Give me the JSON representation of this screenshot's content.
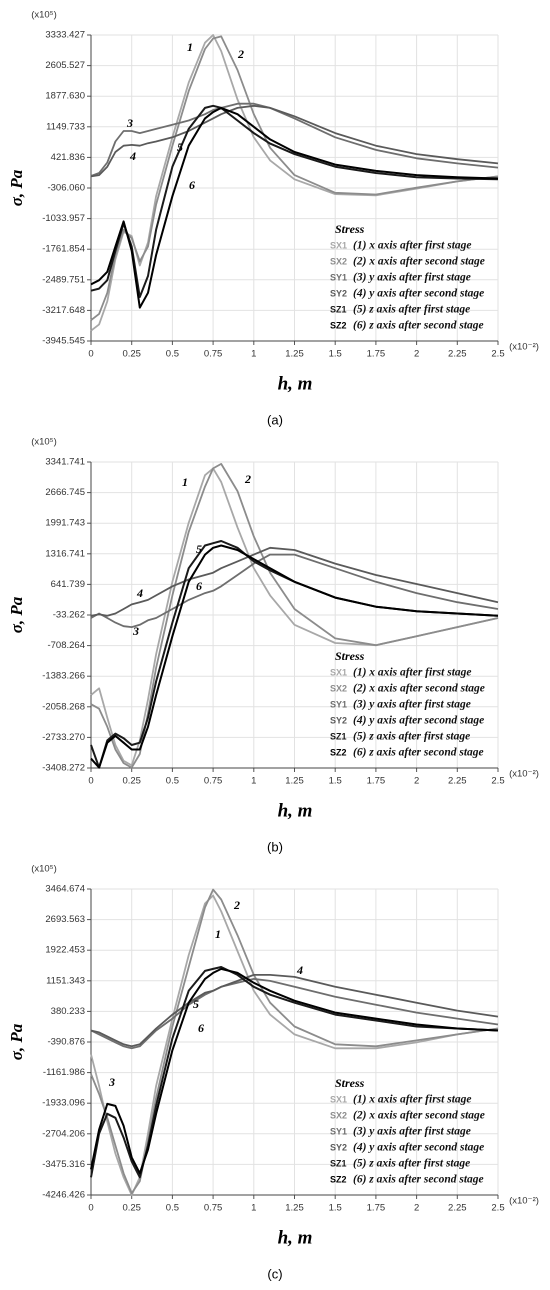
{
  "chart_data": [
    {
      "type": "line",
      "panel": "(a)",
      "y_label": "σ, Pa",
      "x_label": "h, m",
      "y_multiplier": "(x10⁵)",
      "x_multiplier": "(x10⁻²)",
      "legend_title": "Stress",
      "legend": "lower right",
      "grid": true,
      "xlim": [
        0,
        2.5
      ],
      "xticks": [
        0,
        0.25,
        0.5,
        0.75,
        1,
        1.25,
        1.5,
        1.75,
        2,
        2.25,
        2.5
      ],
      "ylim": [
        -3945.545,
        3333.427
      ],
      "yticks": [
        -3945.545,
        -3217.648,
        -2489.751,
        -1761.854,
        -1033.957,
        {
          "value": -306.06,
          "label": "-306.060"
        },
        421.836,
        1149.733,
        {
          "value": 1877.63,
          "label": "1877.630"
        },
        2605.527,
        3333.427
      ],
      "x": [
        0,
        0.05,
        0.1,
        0.15,
        0.2,
        0.25,
        0.3,
        0.35,
        0.4,
        0.5,
        0.6,
        0.7,
        0.75,
        0.8,
        0.9,
        1,
        1.1,
        1.25,
        1.5,
        1.75,
        2,
        2.25,
        2.5
      ],
      "series": [
        {
          "code": "SX1",
          "label": "1",
          "name": "(1) x axis after first stage",
          "color": "#a8a8a8",
          "values": [
            -3700,
            -3550,
            -3000,
            -2000,
            -1350,
            -1450,
            -2150,
            -1600,
            -500,
            900,
            2200,
            3150,
            3333,
            2950,
            1800,
            900,
            350,
            -100,
            -450,
            -480,
            -320,
            -150,
            -30
          ]
        },
        {
          "code": "SX2",
          "label": "2",
          "name": "(2) x axis after second stage",
          "color": "#8c8c8c",
          "values": [
            -3450,
            -3300,
            -2800,
            -1900,
            -1300,
            -1500,
            -2050,
            -1700,
            -700,
            700,
            2000,
            3000,
            3250,
            3300,
            2500,
            1450,
            650,
            0,
            -420,
            -460,
            -300,
            -150,
            -30
          ]
        },
        {
          "code": "SY1",
          "label": "3",
          "name": "(3) y axis after first stage",
          "color": "#6e6e6e",
          "values": [
            -20,
            50,
            300,
            800,
            1050,
            1050,
            1000,
            1050,
            1100,
            1200,
            1300,
            1450,
            1550,
            1600,
            1700,
            1700,
            1600,
            1350,
            900,
            600,
            400,
            280,
            180
          ]
        },
        {
          "code": "SY2",
          "label": "4",
          "name": "(4) y axis after second stage",
          "color": "#5a5a5a",
          "values": [
            -30,
            0,
            200,
            550,
            700,
            720,
            700,
            760,
            800,
            900,
            1050,
            1250,
            1350,
            1450,
            1600,
            1650,
            1600,
            1400,
            1000,
            700,
            500,
            380,
            280
          ]
        },
        {
          "code": "SZ1",
          "label": "5",
          "name": "(5) z axis after first stage",
          "color": "#1a1a1a",
          "values": [
            -2750,
            -2700,
            -2500,
            -1800,
            -1150,
            -1700,
            -2900,
            -2400,
            -1300,
            200,
            1100,
            1600,
            1650,
            1600,
            1300,
            1000,
            750,
            500,
            200,
            50,
            -50,
            -80,
            -100
          ]
        },
        {
          "code": "SZ2",
          "label": "6",
          "name": "(6) z axis after second stage",
          "color": "#000000",
          "values": [
            -2600,
            -2500,
            -2300,
            -1700,
            -1100,
            -1800,
            -3150,
            -2800,
            -1900,
            -500,
            700,
            1350,
            1500,
            1600,
            1450,
            1150,
            850,
            550,
            250,
            100,
            0,
            -50,
            -80
          ]
        }
      ]
    },
    {
      "type": "line",
      "panel": "(b)",
      "y_label": "σ, Pa",
      "x_label": "h, m",
      "y_multiplier": "(x10⁵)",
      "x_multiplier": "(x10⁻²)",
      "legend_title": "Stress",
      "legend": "lower right",
      "grid": true,
      "xlim": [
        0,
        2.5
      ],
      "xticks": [
        0,
        0.25,
        0.5,
        0.75,
        1,
        1.25,
        1.5,
        1.75,
        2,
        2.25,
        2.5
      ],
      "ylim": [
        -3408.272,
        3341.741
      ],
      "yticks": [
        -3408.272,
        {
          "value": -2733.27,
          "label": "-2733.270"
        },
        -2058.268,
        -1383.266,
        -708.264,
        -33.262,
        641.739,
        1316.741,
        1991.743,
        2666.745,
        3341.741
      ],
      "x": [
        0,
        0.05,
        0.1,
        0.15,
        0.2,
        0.25,
        0.3,
        0.35,
        0.4,
        0.5,
        0.6,
        0.7,
        0.75,
        0.8,
        0.9,
        1,
        1.1,
        1.25,
        1.5,
        1.75,
        2,
        2.25,
        2.5
      ],
      "series": [
        {
          "code": "SX1",
          "label": "1",
          "name": "(1) x axis after first stage",
          "color": "#a8a8a8",
          "values": [
            -1800,
            -1650,
            -2300,
            -2900,
            -3250,
            -3350,
            -2800,
            -1900,
            -900,
            700,
            2000,
            3050,
            3200,
            2900,
            1900,
            1000,
            400,
            -250,
            -650,
            -700,
            -500,
            -300,
            -100
          ]
        },
        {
          "code": "SX2",
          "label": "2",
          "name": "(2) x axis after second stage",
          "color": "#8c8c8c",
          "values": [
            -2000,
            -2100,
            -2500,
            -3000,
            -3300,
            -3400,
            -3100,
            -2200,
            -1200,
            400,
            1800,
            2800,
            3200,
            3300,
            2700,
            1700,
            900,
            100,
            -550,
            -700,
            -500,
            -300,
            -100
          ]
        },
        {
          "code": "SY1",
          "label": "3",
          "name": "(3) y axis after first stage",
          "color": "#6e6e6e",
          "values": [
            -100,
            0,
            -100,
            -200,
            -280,
            -300,
            -250,
            -150,
            -100,
            100,
            300,
            450,
            500,
            600,
            850,
            1100,
            1300,
            1300,
            1000,
            700,
            450,
            250,
            100
          ]
        },
        {
          "code": "SY2",
          "label": "4",
          "name": "(4) y axis after second stage",
          "color": "#5a5a5a",
          "values": [
            -50,
            -20,
            -50,
            0,
            100,
            200,
            250,
            300,
            400,
            600,
            750,
            850,
            900,
            1000,
            1150,
            1300,
            1450,
            1400,
            1100,
            850,
            650,
            450,
            250
          ]
        },
        {
          "code": "SZ1",
          "label": "5",
          "name": "(5) z axis after first stage",
          "color": "#1a1a1a",
          "values": [
            -2900,
            -3400,
            -2800,
            -2650,
            -2750,
            -2900,
            -2850,
            -2300,
            -1500,
            -200,
            1000,
            1500,
            1550,
            1600,
            1450,
            1150,
            950,
            700,
            350,
            150,
            50,
            0,
            -50
          ]
        },
        {
          "code": "SZ2",
          "label": "6",
          "name": "(6) z axis after second stage",
          "color": "#000000",
          "values": [
            -3200,
            -3400,
            -2850,
            -2700,
            -2850,
            -3000,
            -3000,
            -2500,
            -1800,
            -500,
            700,
            1300,
            1450,
            1500,
            1400,
            1200,
            1000,
            700,
            350,
            150,
            50,
            0,
            -50
          ]
        }
      ]
    },
    {
      "type": "line",
      "panel": "(c)",
      "y_label": "σ, Pa",
      "x_label": "h, m",
      "y_multiplier": "(x10⁵)",
      "x_multiplier": "(x10⁻²)",
      "legend_title": "Stress",
      "legend": "lower right",
      "grid": true,
      "xlim": [
        0,
        2.5
      ],
      "xticks": [
        0,
        0.25,
        0.5,
        0.75,
        1,
        1.25,
        1.5,
        1.75,
        2,
        2.25,
        2.5
      ],
      "ylim": [
        -4246.426,
        3464.674
      ],
      "yticks": [
        -4246.426,
        -3475.316,
        -2704.206,
        -1933.096,
        -1161.986,
        -390.876,
        380.233,
        1151.343,
        1922.453,
        2693.563,
        3464.674
      ],
      "x": [
        0,
        0.05,
        0.1,
        0.15,
        0.2,
        0.25,
        0.3,
        0.35,
        0.4,
        0.5,
        0.6,
        0.7,
        0.75,
        0.8,
        0.9,
        1,
        1.1,
        1.25,
        1.5,
        1.75,
        2,
        2.25,
        2.5
      ],
      "series": [
        {
          "code": "SX1",
          "label": "1",
          "name": "(1) x axis after first stage",
          "color": "#a8a8a8",
          "values": [
            -700,
            -1500,
            -2400,
            -3200,
            -3800,
            -4246,
            -3800,
            -2700,
            -1500,
            200,
            1800,
            3100,
            3300,
            2900,
            1900,
            900,
            300,
            -200,
            -550,
            -550,
            -400,
            -200,
            -50
          ]
        },
        {
          "code": "SX2",
          "label": "2",
          "name": "(2) x axis after second stage",
          "color": "#8c8c8c",
          "values": [
            -1200,
            -1700,
            -2300,
            -3000,
            -3700,
            -4200,
            -3900,
            -2900,
            -1800,
            0,
            1500,
            3000,
            3450,
            3200,
            2300,
            1300,
            600,
            0,
            -450,
            -500,
            -350,
            -200,
            -50
          ]
        },
        {
          "code": "SY1",
          "label": "3",
          "name": "(3) y axis after first stage",
          "color": "#6e6e6e",
          "values": [
            -100,
            -200,
            -300,
            -400,
            -500,
            -550,
            -500,
            -300,
            -100,
            200,
            550,
            800,
            900,
            1000,
            1100,
            1200,
            1150,
            1000,
            750,
            550,
            350,
            200,
            50
          ]
        },
        {
          "code": "SY2",
          "label": "4",
          "name": "(4) y axis after second stage",
          "color": "#5a5a5a",
          "values": [
            -100,
            -150,
            -250,
            -350,
            -450,
            -500,
            -450,
            -250,
            -50,
            300,
            600,
            850,
            900,
            1000,
            1150,
            1300,
            1300,
            1250,
            1000,
            800,
            600,
            400,
            250
          ]
        },
        {
          "code": "SZ1",
          "label": "5",
          "name": "(5) z axis after first stage",
          "color": "#1a1a1a",
          "values": [
            -3800,
            -2700,
            -2200,
            -2300,
            -2800,
            -3400,
            -3800,
            -3000,
            -2000,
            -300,
            900,
            1400,
            1450,
            1500,
            1300,
            1000,
            800,
            600,
            300,
            150,
            0,
            -50,
            -100
          ]
        },
        {
          "code": "SZ2",
          "label": "6",
          "name": "(6) z axis after second stage",
          "color": "#000000",
          "values": [
            -3600,
            -2600,
            -1950,
            -2000,
            -2500,
            -3300,
            -3700,
            -3100,
            -2200,
            -600,
            600,
            1200,
            1350,
            1450,
            1350,
            1100,
            900,
            650,
            350,
            200,
            50,
            -50,
            -100
          ]
        }
      ]
    }
  ]
}
